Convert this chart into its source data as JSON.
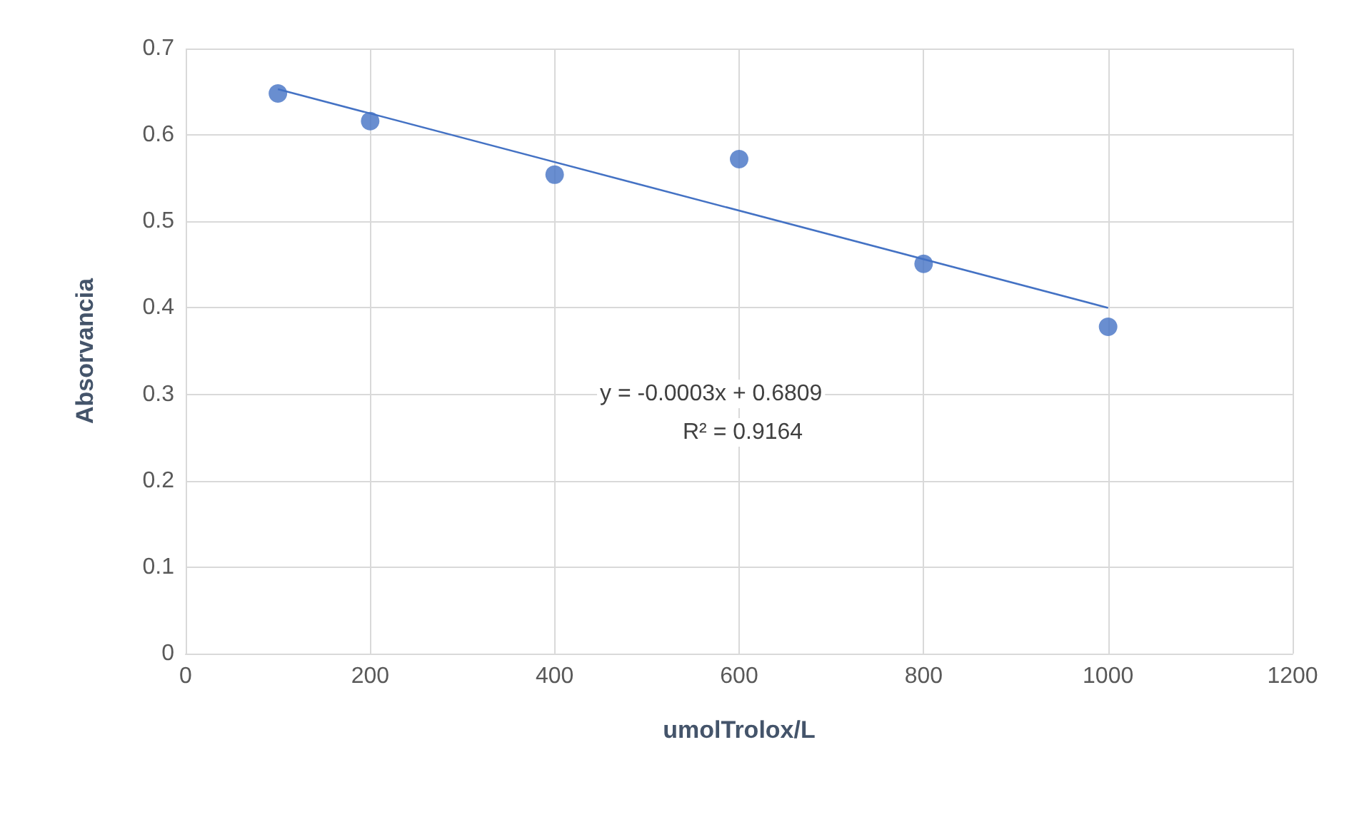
{
  "chart_data": {
    "type": "scatter",
    "xlabel": "umolTrolox/L",
    "ylabel": "Absorvancia",
    "series": [
      {
        "color": "#4472c4",
        "x": [
          100,
          200,
          400,
          600,
          800,
          1000
        ],
        "values": [
          0.648,
          0.616,
          0.554,
          0.572,
          0.451,
          0.378
        ],
        "marker": "circle"
      },
      {
        "type": "line",
        "color": "#4472c4",
        "x": [
          100,
          1000
        ],
        "values": [
          0.653,
          0.4
        ],
        "marker": "none",
        "line_style": "solid"
      }
    ],
    "annotations": [
      "y = -0.0003x + 0.6809",
      "R² = 0.9164"
    ],
    "xlim": [
      0,
      1200
    ],
    "xticks": [
      0,
      200,
      400,
      600,
      800,
      1000,
      1200
    ],
    "ylim": [
      0,
      0.7
    ],
    "yticks": [
      0,
      0.1,
      0.2,
      0.3,
      0.4,
      0.5,
      0.6,
      0.7
    ],
    "grid": true
  }
}
